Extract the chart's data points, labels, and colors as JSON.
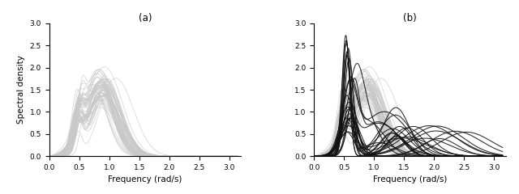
{
  "title_a": "(a)",
  "title_b": "(b)",
  "xlabel": "Frequency (rad/s)",
  "ylabel": "Spectral density",
  "xlim": [
    0.0,
    3.2
  ],
  "ylim": [
    0.0,
    3.0
  ],
  "xticks": [
    0.0,
    0.5,
    1.0,
    1.5,
    2.0,
    2.5,
    3.0
  ],
  "yticks": [
    0.0,
    0.5,
    1.0,
    1.5,
    2.0,
    2.5,
    3.0
  ],
  "color_gray": "#c8c8c8",
  "color_black": "#111111",
  "alpha_gray": 0.75,
  "alpha_black": 0.9,
  "lw_gray": 0.55,
  "lw_black": 0.75,
  "n_gray": 60,
  "n_black": 25,
  "seed_gray": 42,
  "seed_black": 99
}
